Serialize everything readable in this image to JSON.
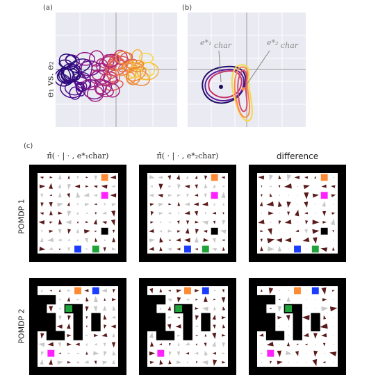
{
  "panel_labels": {
    "a": "(a)",
    "b": "(b)",
    "c": "(c)"
  },
  "axis": {
    "ylabel_a": "e₁ vs. e₂"
  },
  "annotations": {
    "echar1": "e*₁",
    "echar1_sub": "char",
    "echar2": "e*₂",
    "echar2_sub": "char"
  },
  "columns": {
    "col1": "π̂( · | · , e*₁char)",
    "col2": "π̂( · | · , e*₂char)",
    "col3": "difference"
  },
  "rows": {
    "row1": "POMDP 1",
    "row2": "POMDP 2"
  },
  "colors": {
    "pink": "#ff21ff",
    "orange": "#ff8a33",
    "blue": "#1a3cff",
    "green": "#1fa33a",
    "black": "#000000",
    "arrow_dark": "#5a1a1a",
    "arrow_light": "#c8c8c8",
    "purple": "#3b0a8a",
    "magenta": "#b1207a",
    "yellow": "#f5d84a"
  },
  "grid_layouts": {
    "pomdp1": {
      "size": 9,
      "goals": [
        {
          "row": 0,
          "col": 7,
          "color": "orange"
        },
        {
          "row": 2,
          "col": 7,
          "color": "pink"
        },
        {
          "row": 6,
          "col": 7,
          "color": "black"
        },
        {
          "row": 8,
          "col": 4,
          "color": "blue"
        },
        {
          "row": 8,
          "col": 6,
          "color": "green"
        }
      ]
    },
    "pomdp2": {
      "size": 9,
      "walls": [
        [
          1,
          0
        ],
        [
          1,
          1
        ],
        [
          2,
          0
        ],
        [
          3,
          0
        ],
        [
          3,
          1
        ],
        [
          4,
          0
        ],
        [
          4,
          1
        ],
        [
          3,
          4
        ],
        [
          4,
          4
        ],
        [
          5,
          4
        ],
        [
          3,
          6
        ],
        [
          4,
          6
        ],
        [
          2,
          3
        ],
        [
          2,
          4
        ],
        [
          5,
          1
        ],
        [
          5,
          2
        ]
      ],
      "goals": [
        {
          "row": 0,
          "col": 4,
          "color": "orange"
        },
        {
          "row": 0,
          "col": 6,
          "color": "blue"
        },
        {
          "row": 2,
          "col": 3,
          "color": "green"
        },
        {
          "row": 7,
          "col": 1,
          "color": "pink"
        }
      ]
    }
  }
}
